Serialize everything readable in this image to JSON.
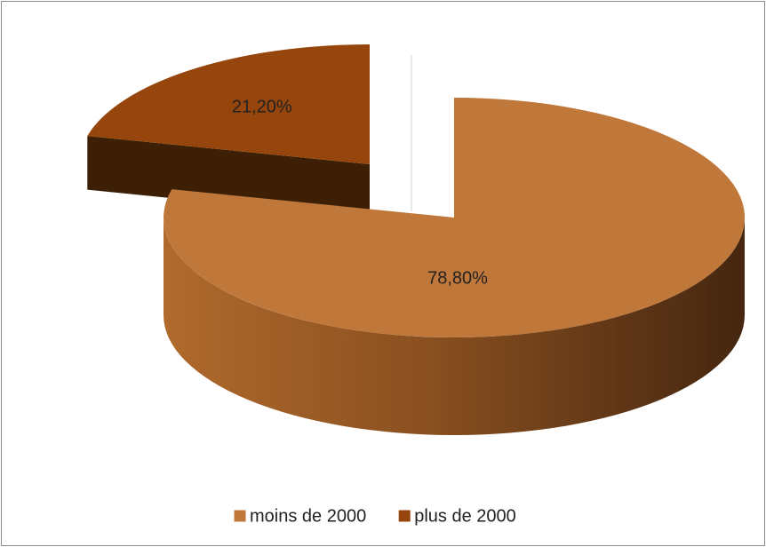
{
  "chart_data": {
    "type": "pie",
    "categories": [
      "moins de 2000",
      "plus de 2000"
    ],
    "values": [
      78.8,
      21.2
    ],
    "value_labels": [
      "78,80%",
      "21,20%"
    ],
    "colors": [
      "#c0773a",
      "#96460c"
    ],
    "legend": "bottom"
  }
}
